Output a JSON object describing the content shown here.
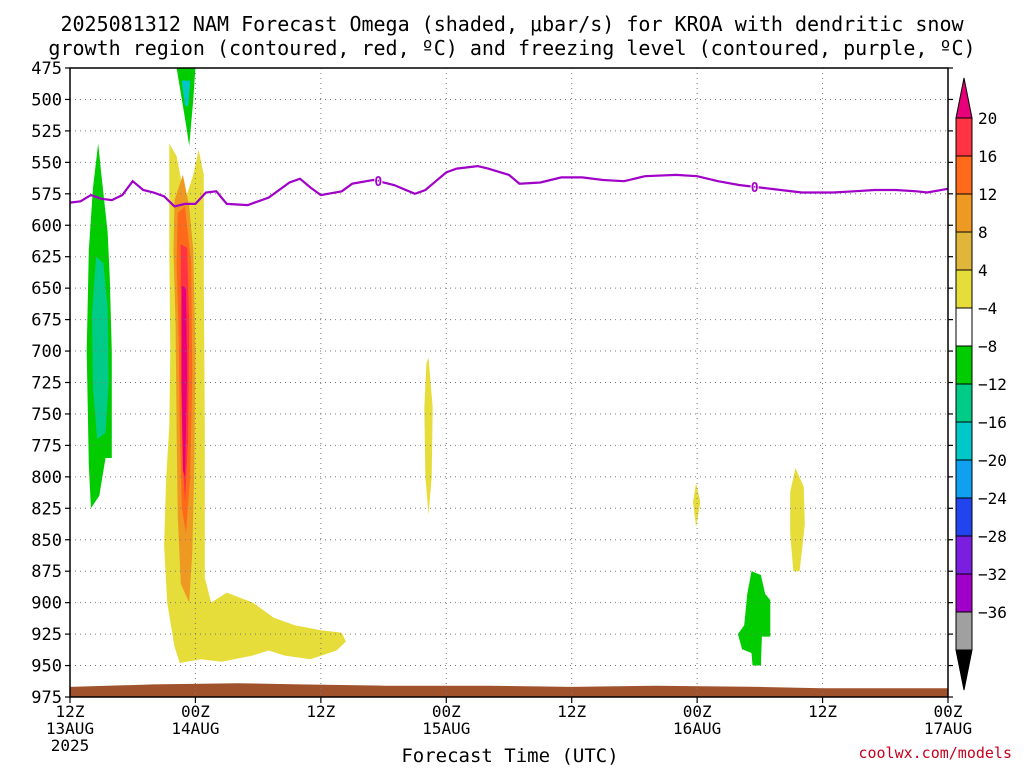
{
  "title_line1": "2025081312 NAM Forecast Omega (shaded, μbar/s) for KROA with dendritic snow",
  "title_line2": "growth region (contoured, red, ºC) and freezing level (contoured, purple, ºC)",
  "credit": "coolwx.com/models",
  "chart_data": {
    "type": "contour-cross-section",
    "xlabel": "Forecast Time (UTC)",
    "ylabel": "",
    "y_reversed": true,
    "ylim": [
      975,
      475
    ],
    "y_ticks": [
      475,
      500,
      525,
      550,
      575,
      600,
      625,
      650,
      675,
      700,
      725,
      750,
      775,
      800,
      825,
      850,
      875,
      900,
      925,
      950,
      975
    ],
    "x_hours_from_start": [
      0,
      84
    ],
    "x_ticks": [
      {
        "h": 0,
        "l1": "12Z",
        "l2": "13AUG",
        "l3": "2025"
      },
      {
        "h": 12,
        "l1": "00Z",
        "l2": "14AUG",
        "l3": ""
      },
      {
        "h": 24,
        "l1": "12Z",
        "l2": "",
        "l3": ""
      },
      {
        "h": 36,
        "l1": "00Z",
        "l2": "15AUG",
        "l3": ""
      },
      {
        "h": 48,
        "l1": "12Z",
        "l2": "",
        "l3": ""
      },
      {
        "h": 60,
        "l1": "00Z",
        "l2": "16AUG",
        "l3": ""
      },
      {
        "h": 72,
        "l1": "12Z",
        "l2": "",
        "l3": ""
      },
      {
        "h": 84,
        "l1": "00Z",
        "l2": "17AUG",
        "l3": ""
      }
    ],
    "colorbar": {
      "labels": [
        "20",
        "16",
        "12",
        "8",
        "4",
        "−4",
        "−8",
        "−12",
        "−16",
        "−20",
        "−24",
        "−28",
        "−32",
        "−36"
      ],
      "colors": [
        "#ff3344",
        "#ff6a1a",
        "#ee9a22",
        "#e0b63a",
        "#e6dc3a",
        "#ffffff",
        "#00cc00",
        "#00cc88",
        "#00c8c8",
        "#11a0f0",
        "#2244ee",
        "#7a1ee0",
        "#a000c8",
        "#a0a0a0"
      ],
      "top_color": "#e8007a",
      "bottom_color": "#000000"
    },
    "freezing_level": {
      "color": "#a000c8",
      "label": "0",
      "points": [
        [
          0,
          582
        ],
        [
          1,
          581
        ],
        [
          2,
          576
        ],
        [
          3,
          579
        ],
        [
          4,
          580
        ],
        [
          5,
          576
        ],
        [
          6,
          565
        ],
        [
          7,
          572
        ],
        [
          8,
          574
        ],
        [
          9,
          577
        ],
        [
          10,
          585
        ],
        [
          11,
          583
        ],
        [
          12,
          583
        ],
        [
          13,
          574
        ],
        [
          14,
          573
        ],
        [
          15,
          583
        ],
        [
          17,
          584
        ],
        [
          19,
          578
        ],
        [
          21,
          566
        ],
        [
          22,
          563
        ],
        [
          23,
          570
        ],
        [
          24,
          576
        ],
        [
          26,
          573
        ],
        [
          27,
          567
        ],
        [
          29,
          564
        ],
        [
          31,
          568
        ],
        [
          33,
          575
        ],
        [
          34,
          572
        ],
        [
          35,
          565
        ],
        [
          36,
          558
        ],
        [
          37,
          555
        ],
        [
          39,
          553
        ],
        [
          40,
          555
        ],
        [
          42,
          560
        ],
        [
          43,
          567
        ],
        [
          45,
          566
        ],
        [
          47,
          562
        ],
        [
          49,
          562
        ],
        [
          51,
          564
        ],
        [
          53,
          565
        ],
        [
          55,
          561
        ],
        [
          58,
          560
        ],
        [
          60,
          561
        ],
        [
          62,
          565
        ],
        [
          64,
          568
        ],
        [
          66,
          570
        ],
        [
          68,
          572
        ],
        [
          70,
          574
        ],
        [
          73,
          574
        ],
        [
          75,
          573
        ],
        [
          77,
          572
        ],
        [
          79,
          572
        ],
        [
          81,
          573
        ],
        [
          82,
          574
        ],
        [
          84,
          571
        ]
      ],
      "label_at_h": [
        29.5,
        65.5
      ]
    },
    "omega_regions": [
      {
        "value": -6,
        "color": "#00cc00",
        "points": [
          [
            10.2,
            475
          ],
          [
            12.0,
            475
          ],
          [
            11.8,
            500
          ],
          [
            11.4,
            537
          ],
          [
            11.1,
            520
          ],
          [
            10.6,
            495
          ]
        ]
      },
      {
        "value": -14,
        "color": "#00c8c8",
        "points": [
          [
            10.7,
            485
          ],
          [
            11.5,
            485
          ],
          [
            11.3,
            505
          ],
          [
            11.0,
            505
          ]
        ]
      },
      {
        "value": -6,
        "color": "#00cc00",
        "points": [
          [
            2.7,
            535
          ],
          [
            3.0,
            560
          ],
          [
            3.6,
            605
          ],
          [
            3.8,
            640
          ],
          [
            4.0,
            700
          ],
          [
            4.0,
            785
          ],
          [
            3.4,
            785
          ],
          [
            2.8,
            815
          ],
          [
            2.0,
            825
          ],
          [
            1.8,
            790
          ],
          [
            1.6,
            700
          ],
          [
            1.8,
            620
          ],
          [
            2.2,
            570
          ]
        ]
      },
      {
        "value": -10,
        "color": "#00cc88",
        "points": [
          [
            2.5,
            625
          ],
          [
            3.2,
            630
          ],
          [
            3.6,
            665
          ],
          [
            3.7,
            725
          ],
          [
            3.4,
            765
          ],
          [
            2.6,
            770
          ],
          [
            2.2,
            730
          ],
          [
            2.1,
            670
          ]
        ]
      },
      {
        "value": 6,
        "color": "#e6dc3a",
        "points": [
          [
            9.5,
            535
          ],
          [
            10.2,
            545
          ],
          [
            11.0,
            580
          ],
          [
            11.8,
            560
          ],
          [
            12.3,
            540
          ],
          [
            12.8,
            560
          ],
          [
            12.8,
            640
          ],
          [
            12.9,
            760
          ],
          [
            12.9,
            880
          ],
          [
            13.5,
            900
          ],
          [
            15.0,
            892
          ],
          [
            17.5,
            900
          ],
          [
            19.5,
            912
          ],
          [
            21.5,
            918
          ],
          [
            24.0,
            922
          ],
          [
            26.0,
            924
          ],
          [
            26.4,
            931
          ],
          [
            25.5,
            938
          ],
          [
            23.0,
            945
          ],
          [
            20.5,
            942
          ],
          [
            19.0,
            938
          ],
          [
            17.5,
            942
          ],
          [
            14.5,
            947
          ],
          [
            12.5,
            945
          ],
          [
            10.5,
            948
          ],
          [
            10.0,
            935
          ],
          [
            9.3,
            900
          ],
          [
            9.0,
            855
          ],
          [
            9.2,
            800
          ],
          [
            9.5,
            760
          ],
          [
            9.6,
            700
          ],
          [
            9.5,
            620
          ]
        ]
      },
      {
        "value": 10,
        "color": "#ee9a22",
        "points": [
          [
            10.0,
            580
          ],
          [
            10.8,
            560
          ],
          [
            11.4,
            585
          ],
          [
            11.8,
            620
          ],
          [
            12.0,
            700
          ],
          [
            11.9,
            790
          ],
          [
            11.7,
            860
          ],
          [
            11.4,
            900
          ],
          [
            10.6,
            885
          ],
          [
            10.3,
            830
          ],
          [
            10.2,
            760
          ],
          [
            10.1,
            680
          ],
          [
            9.9,
            620
          ]
        ]
      },
      {
        "value": 14,
        "color": "#ff6a1a",
        "points": [
          [
            10.3,
            590
          ],
          [
            11.0,
            585
          ],
          [
            11.6,
            630
          ],
          [
            11.7,
            720
          ],
          [
            11.5,
            800
          ],
          [
            11.1,
            845
          ],
          [
            10.7,
            825
          ],
          [
            10.5,
            760
          ],
          [
            10.4,
            690
          ],
          [
            10.2,
            630
          ]
        ]
      },
      {
        "value": 18,
        "color": "#ff3344",
        "points": [
          [
            10.6,
            615
          ],
          [
            11.2,
            618
          ],
          [
            11.4,
            680
          ],
          [
            11.3,
            770
          ],
          [
            11.0,
            820
          ],
          [
            10.8,
            790
          ],
          [
            10.6,
            720
          ]
        ]
      },
      {
        "value": 22,
        "color": "#e8007a",
        "points": [
          [
            10.7,
            648
          ],
          [
            11.1,
            650
          ],
          [
            11.2,
            720
          ],
          [
            11.0,
            800
          ],
          [
            10.8,
            795
          ],
          [
            10.7,
            730
          ]
        ]
      },
      {
        "value": 6,
        "color": "#e6dc3a",
        "points": [
          [
            34.3,
            705
          ],
          [
            34.7,
            745
          ],
          [
            34.6,
            800
          ],
          [
            34.3,
            830
          ],
          [
            34.0,
            800
          ],
          [
            33.9,
            745
          ],
          [
            34.1,
            710
          ]
        ]
      },
      {
        "value": 6,
        "color": "#e6dc3a",
        "points": [
          [
            59.9,
            805
          ],
          [
            60.3,
            820
          ],
          [
            59.9,
            840
          ],
          [
            59.6,
            820
          ]
        ]
      },
      {
        "value": 6,
        "color": "#e6dc3a",
        "points": [
          [
            69.4,
            793
          ],
          [
            70.2,
            808
          ],
          [
            70.3,
            838
          ],
          [
            69.8,
            875
          ],
          [
            69.2,
            875
          ],
          [
            68.9,
            845
          ],
          [
            68.9,
            812
          ]
        ]
      },
      {
        "value": -6,
        "color": "#00cc00",
        "points": [
          [
            65.2,
            875
          ],
          [
            66.1,
            878
          ],
          [
            66.5,
            893
          ],
          [
            67.0,
            898
          ],
          [
            67.0,
            927
          ],
          [
            66.2,
            927
          ],
          [
            66.1,
            950
          ],
          [
            65.3,
            950
          ],
          [
            65.2,
            940
          ],
          [
            64.3,
            937
          ],
          [
            63.9,
            925
          ],
          [
            64.5,
            918
          ],
          [
            64.8,
            893
          ]
        ]
      }
    ],
    "terrain": {
      "color": "#a0522d",
      "points": [
        [
          0,
          967
        ],
        [
          8,
          965
        ],
        [
          16,
          964
        ],
        [
          22,
          965
        ],
        [
          30,
          966
        ],
        [
          40,
          966
        ],
        [
          48,
          967
        ],
        [
          56,
          966
        ],
        [
          66,
          967
        ],
        [
          72,
          968
        ],
        [
          84,
          968
        ]
      ]
    }
  }
}
